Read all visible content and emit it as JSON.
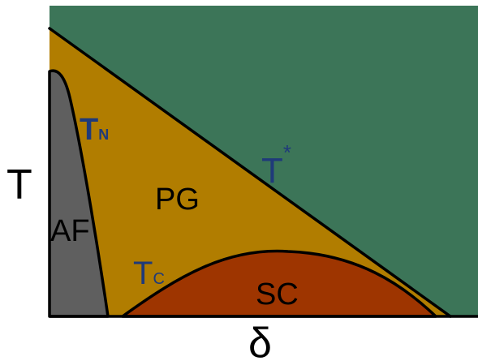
{
  "diagram": {
    "axes": {
      "y_label": "T",
      "x_label": "δ"
    },
    "regions": {
      "af": "AF",
      "pg": "PG",
      "sc": "SC"
    },
    "lines": {
      "tn_main": "T",
      "tn_sub": "N",
      "tstar_main": "T",
      "tstar_sup": "*",
      "tc_main": "T",
      "tc_sub": "C"
    },
    "colors": {
      "background_green": "#3c7558",
      "pseudogap_gold": "#b17d00",
      "antiferromagnet_gray": "#5f5f5f",
      "superconductor_rust": "#9e3500",
      "line_label_blue": "#1f3a7a",
      "outline": "#000000"
    }
  }
}
